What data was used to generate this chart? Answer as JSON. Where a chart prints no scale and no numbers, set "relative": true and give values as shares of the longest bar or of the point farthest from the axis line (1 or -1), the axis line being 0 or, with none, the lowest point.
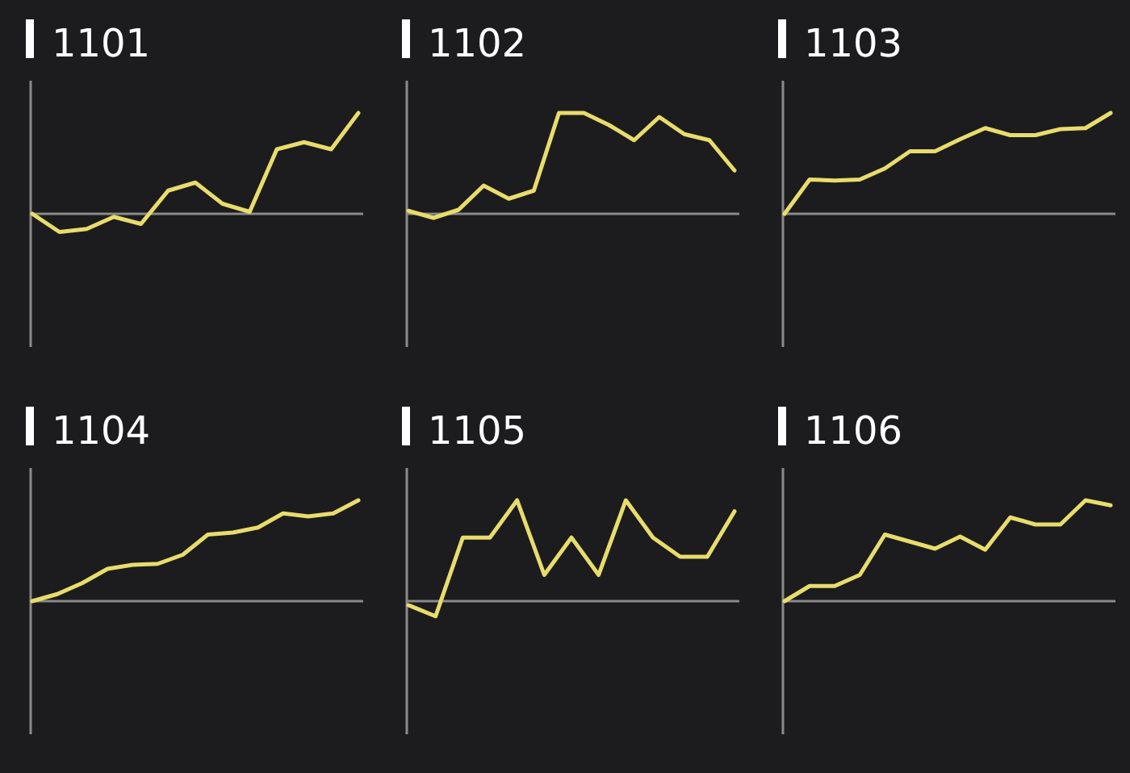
{
  "chart_data": [
    {
      "type": "line",
      "title": "1101",
      "relative": true,
      "color": "#e8dc6c",
      "categories": [
        null,
        null,
        null,
        null,
        null,
        null,
        null,
        null,
        null,
        null,
        null,
        null,
        null
      ],
      "values": [
        0,
        -0.18,
        -0.15,
        -0.03,
        -0.1,
        0.23,
        0.31,
        0.1,
        0.02,
        0.64,
        0.71,
        0.64,
        1
      ]
    },
    {
      "type": "line",
      "title": "1102",
      "relative": true,
      "color": "#e8dc6c",
      "categories": [
        null,
        null,
        null,
        null,
        null,
        null,
        null,
        null,
        null,
        null,
        null,
        null,
        null,
        null
      ],
      "values": [
        0.03,
        -0.04,
        0.04,
        0.28,
        0.15,
        0.23,
        1,
        1,
        0.88,
        0.73,
        0.96,
        0.79,
        0.73,
        0.43
      ]
    },
    {
      "type": "line",
      "title": "1103",
      "relative": true,
      "color": "#e8dc6c",
      "categories": [
        null,
        null,
        null,
        null,
        null,
        null,
        null,
        null,
        null,
        null,
        null,
        null,
        null,
        null
      ],
      "values": [
        0,
        0.34,
        0.33,
        0.34,
        0.45,
        0.62,
        0.62,
        0.74,
        0.85,
        0.78,
        0.78,
        0.84,
        0.85,
        1
      ]
    },
    {
      "type": "line",
      "title": "1104",
      "relative": true,
      "color": "#e8dc6c",
      "categories": [
        null,
        null,
        null,
        null,
        null,
        null,
        null,
        null,
        null,
        null,
        null,
        null,
        null,
        null
      ],
      "values": [
        0,
        0.07,
        0.18,
        0.32,
        0.36,
        0.37,
        0.46,
        0.66,
        0.68,
        0.73,
        0.87,
        0.84,
        0.87,
        1
      ]
    },
    {
      "type": "line",
      "title": "1105",
      "relative": true,
      "color": "#e8dc6c",
      "categories": [
        null,
        null,
        null,
        null,
        null,
        null,
        null,
        null,
        null,
        null,
        null,
        null,
        null
      ],
      "values": [
        -0.04,
        -0.15,
        0.63,
        0.63,
        1,
        0.26,
        0.63,
        0.26,
        1,
        0.63,
        0.44,
        0.44,
        0.89
      ]
    },
    {
      "type": "line",
      "title": "1106",
      "relative": true,
      "color": "#e8dc6c",
      "categories": [
        null,
        null,
        null,
        null,
        null,
        null,
        null,
        null,
        null,
        null,
        null,
        null,
        null,
        null
      ],
      "values": [
        0,
        0.15,
        0.15,
        0.26,
        0.66,
        0.59,
        0.52,
        0.64,
        0.51,
        0.83,
        0.76,
        0.76,
        1,
        0.95
      ]
    }
  ]
}
